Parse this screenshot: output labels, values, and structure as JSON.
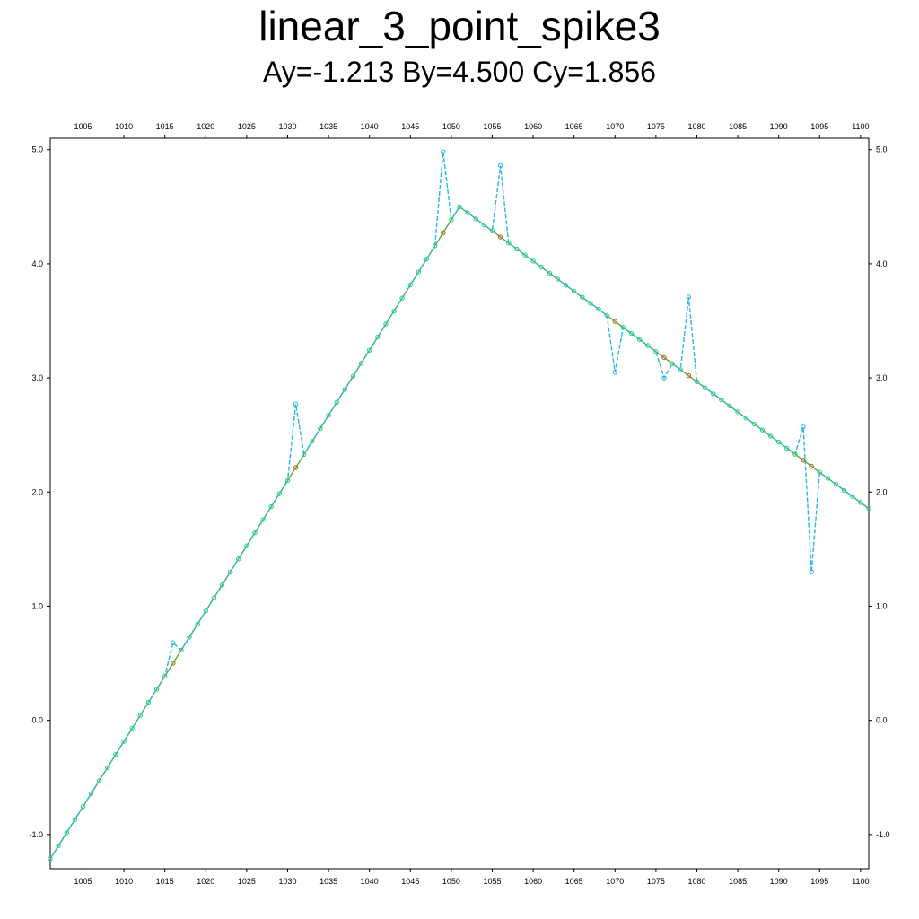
{
  "chart_data": {
    "type": "line",
    "title": "linear_3_point_spike3",
    "subtitle": "Ay=-1.213 By=4.500 Cy=1.856",
    "xlim": [
      1001,
      1101
    ],
    "ylim": [
      -1.3,
      5.1
    ],
    "x_ticks": [
      1005,
      1010,
      1015,
      1020,
      1025,
      1030,
      1035,
      1040,
      1045,
      1050,
      1055,
      1060,
      1065,
      1070,
      1075,
      1080,
      1085,
      1090,
      1095,
      1100
    ],
    "x_tick_labels": [
      "1005",
      "1010",
      "1015",
      "1020",
      "1025",
      "1030",
      "1035",
      "1040",
      "1045",
      "1050",
      "1055",
      "1060",
      "1065",
      "1070",
      "1075",
      "1080",
      "1085",
      "1090",
      "1095",
      "1100"
    ],
    "y_ticks": [
      -1.0,
      0.0,
      1.0,
      2.0,
      3.0,
      4.0,
      5.0
    ],
    "y_tick_labels": [
      "-1.0",
      "0.0",
      "1.0",
      "2.0",
      "3.0",
      "4.0",
      "5.0"
    ],
    "grid": false,
    "colors": {
      "fit_line": "#4aa832",
      "fit_marker": "#2ecc71",
      "data_line": "#29b6e8",
      "outlier_marker": "#c0602a",
      "axis": "#000000"
    },
    "fit": {
      "x": [
        1001,
        1051,
        1101
      ],
      "y": [
        -1.213,
        4.5,
        1.856
      ]
    },
    "spikes": [
      {
        "x": 1016,
        "y": 0.68
      },
      {
        "x": 1031,
        "y": 2.77
      },
      {
        "x": 1049,
        "y": 4.98
      },
      {
        "x": 1056,
        "y": 4.86
      },
      {
        "x": 1070,
        "y": 3.05
      },
      {
        "x": 1076,
        "y": 3.0
      },
      {
        "x": 1079,
        "y": 3.71
      },
      {
        "x": 1093,
        "y": 2.57
      },
      {
        "x": 1094,
        "y": 1.3
      }
    ]
  }
}
